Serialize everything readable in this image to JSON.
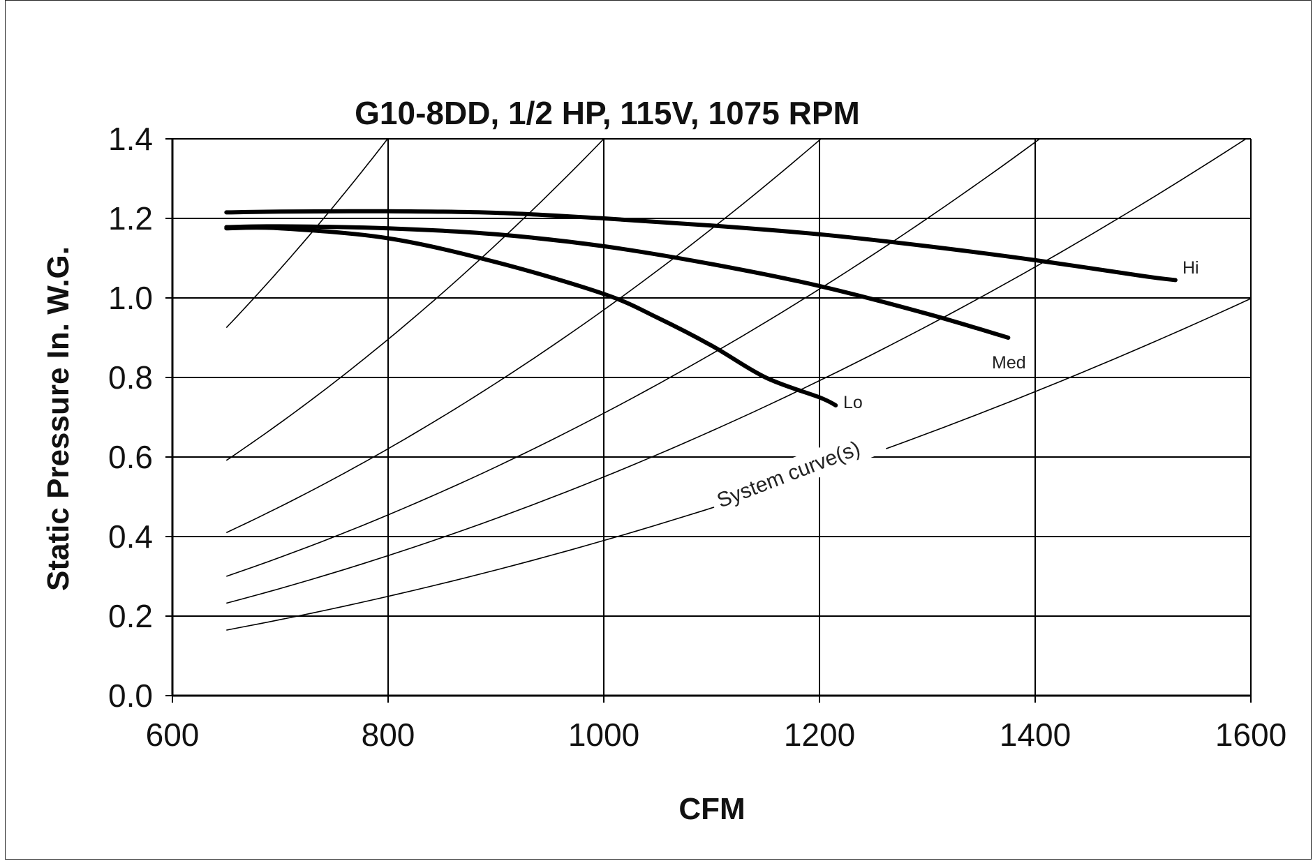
{
  "chart_data": {
    "type": "line",
    "title": "G10-8DD, 1/2 HP, 115V, 1075 RPM",
    "xlabel": "CFM",
    "ylabel": "Static Pressure In. W.G.",
    "xlim": [
      600,
      1600
    ],
    "ylim": [
      0,
      1.4
    ],
    "x_ticks": [
      "600",
      "800",
      "1000",
      "1200",
      "1400",
      "1600"
    ],
    "y_ticks": [
      "0.0",
      "0.2",
      "0.4",
      "0.6",
      "0.8",
      "1.0",
      "1.2",
      "1.4"
    ],
    "x_tick_values": [
      600,
      800,
      1000,
      1200,
      1400,
      1600
    ],
    "y_tick_values": [
      0,
      0.2,
      0.4,
      0.6,
      0.8,
      1.0,
      1.2,
      1.4
    ],
    "grid": true,
    "series": [
      {
        "name": "Hi",
        "x": [
          650,
          700,
          800,
          900,
          1000,
          1100,
          1200,
          1300,
          1400,
          1500,
          1530
        ],
        "y": [
          1.215,
          1.217,
          1.218,
          1.214,
          1.2,
          1.182,
          1.16,
          1.13,
          1.095,
          1.055,
          1.045
        ]
      },
      {
        "name": "Med",
        "x": [
          650,
          700,
          800,
          900,
          1000,
          1100,
          1200,
          1300,
          1375
        ],
        "y": [
          1.178,
          1.18,
          1.175,
          1.16,
          1.13,
          1.085,
          1.03,
          0.96,
          0.9
        ]
      },
      {
        "name": "Lo",
        "x": [
          650,
          700,
          800,
          900,
          1000,
          1050,
          1100,
          1150,
          1200,
          1215
        ],
        "y": [
          1.175,
          1.175,
          1.15,
          1.09,
          1.01,
          0.95,
          0.88,
          0.8,
          0.75,
          0.73
        ]
      }
    ],
    "system_curves": {
      "label": "System curve(s)",
      "k_factors": [
        2.19e-06,
        1.4e-06,
        9.7e-07,
        7.1e-07,
        5.5e-07,
        3.9e-07
      ],
      "x_start": 650,
      "x_end_max": 1600
    }
  }
}
